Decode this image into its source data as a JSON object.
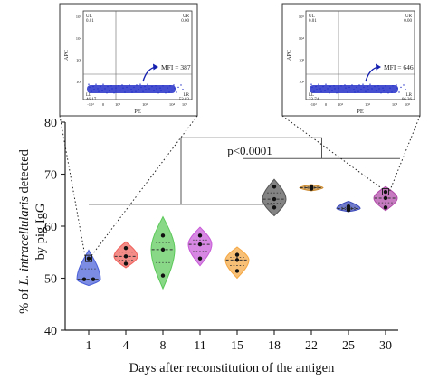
{
  "chart_data": {
    "type": "violin",
    "xlabel": "Days after reconstitution of the antigen",
    "ylabel_line1_prefix": "% of ",
    "ylabel_line1_italic": "L. intracellularis",
    "ylabel_line1_suffix": " detected",
    "ylabel_line2": "by pig IgG",
    "ylim": [
      40,
      80
    ],
    "yticks": [
      "40",
      "50",
      "60",
      "70",
      "80"
    ],
    "categories": [
      "1",
      "4",
      "8",
      "11",
      "15",
      "18",
      "22",
      "25",
      "30"
    ],
    "colors": [
      "#4a5fd8",
      "#f0605a",
      "#5cc95a",
      "#c85ad8",
      "#f5a742",
      "#555555",
      "#c8862a",
      "#3a48b8",
      "#b048a8"
    ],
    "groups": [
      {
        "day": "1",
        "points": [
          49.8,
          49.8,
          53.8
        ],
        "vmin": 48.6,
        "vmax": 55.4
      },
      {
        "day": "4",
        "points": [
          52.8,
          54.2,
          55.8
        ],
        "vmin": 52.0,
        "vmax": 57.0
      },
      {
        "day": "8",
        "points": [
          50.5,
          55.5,
          58.2
        ],
        "vmin": 48.0,
        "vmax": 61.8
      },
      {
        "day": "11",
        "points": [
          53.8,
          56.5,
          58.2
        ],
        "vmin": 52.4,
        "vmax": 59.8
      },
      {
        "day": "15",
        "points": [
          51.4,
          53.5,
          54.5
        ],
        "vmin": 50.0,
        "vmax": 56.0
      },
      {
        "day": "18",
        "points": [
          63.6,
          65.2,
          67.6
        ],
        "vmin": 62.0,
        "vmax": 69.0
      },
      {
        "day": "22",
        "points": [
          67.2,
          67.4,
          67.6
        ],
        "vmin": 66.8,
        "vmax": 68.0
      },
      {
        "day": "25",
        "points": [
          63.1,
          63.4,
          63.8
        ],
        "vmin": 62.8,
        "vmax": 64.8
      },
      {
        "day": "30",
        "points": [
          63.6,
          65.4,
          66.6
        ],
        "vmin": 63.0,
        "vmax": 67.6
      }
    ],
    "annotation": "p<0.0001",
    "insets": [
      {
        "ul_label": "UL",
        "ul_value": "0.01",
        "ur_label": "UR",
        "ur_value": "0.00",
        "ll_label": "LL",
        "ll_value": "46.17",
        "lr_label": "LR",
        "lr_value": "53.82",
        "mfi": "MFI = 387",
        "xlabel": "PE",
        "ylabel": "APC",
        "ticks": [
          "-10²",
          "0",
          "10²",
          "10³",
          "10⁴",
          "10⁵"
        ],
        "yticks": [
          "10⁵",
          "10⁴",
          "10³",
          "10²"
        ]
      },
      {
        "ul_label": "UL",
        "ul_value": "0.01",
        "ur_label": "UR",
        "ur_value": "0.00",
        "ll_label": "LL",
        "ll_value": "33.74",
        "lr_label": "LR",
        "lr_value": "66.26",
        "mfi": "MFI = 646",
        "xlabel": "PE",
        "ylabel": "APC",
        "ticks": [
          "-10²",
          "0",
          "10²",
          "10³",
          "10⁴",
          "10⁵"
        ],
        "yticks": [
          "10⁵",
          "10⁴",
          "10³",
          "10²"
        ]
      }
    ]
  }
}
